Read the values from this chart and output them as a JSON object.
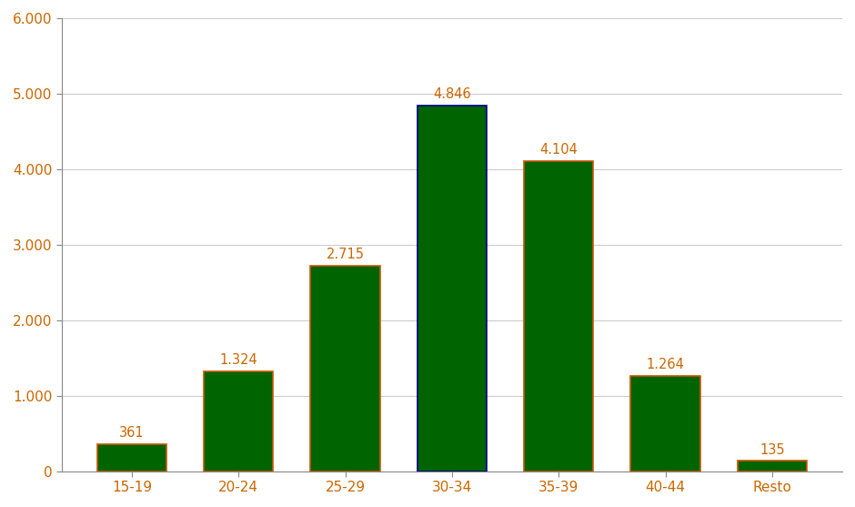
{
  "categories": [
    "15-19",
    "20-24",
    "25-29",
    "30-34",
    "35-39",
    "40-44",
    "Resto"
  ],
  "values": [
    361,
    1324,
    2715,
    4846,
    4104,
    1264,
    135
  ],
  "labels": [
    "361",
    "1.324",
    "2.715",
    "4.846",
    "4.104",
    "1.264",
    "135"
  ],
  "bar_color": "#006400",
  "bar_edge_color_orange": "#cc5500",
  "bar_edge_color_blue": "#00008B",
  "label_color": "#cc6600",
  "ylim": [
    0,
    6000
  ],
  "yticks": [
    0,
    1000,
    2000,
    3000,
    4000,
    5000,
    6000
  ],
  "ytick_labels": [
    "0",
    "1.000",
    "2.000",
    "3.000",
    "4.000",
    "5.000",
    "6.000"
  ],
  "grid_color": "#cccccc",
  "background_color": "#ffffff",
  "label_fontsize": 10.5,
  "tick_fontsize": 11,
  "tick_color": "#cc6600",
  "spine_color": "#888888"
}
